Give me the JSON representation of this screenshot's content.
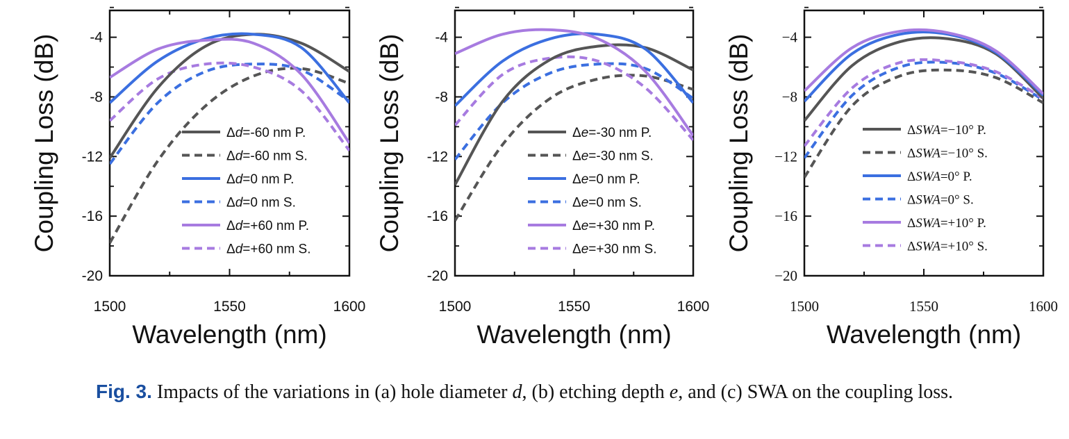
{
  "colors": {
    "grey": "#555555",
    "blue": "#3b6fe0",
    "purple": "#a77be0",
    "axis": "#111111"
  },
  "caption": {
    "label": "Fig. 3.",
    "text_parts": [
      "Impacts of the variations in (a) hole diameter ",
      "d",
      ", (b) etching depth ",
      "e",
      ", and (c) SWA on the coupling loss."
    ]
  },
  "chart_data": [
    {
      "type": "line",
      "xlabel": "Wavelength (nm)",
      "ylabel": "Coupling Loss (dB)",
      "xlim": [
        1500,
        1600
      ],
      "ylim": [
        -20,
        -2.2
      ],
      "xticks": [
        "1500",
        "1550",
        "1600"
      ],
      "yticks": [
        "-4",
        "-8",
        "-12",
        "-16",
        "-20"
      ],
      "x": [
        1500,
        1520,
        1540,
        1560,
        1580,
        1600
      ],
      "series": [
        {
          "name": "Δd=-60 nm P.",
          "sym": "d",
          "pre": "=-60 nm P.",
          "color": "grey",
          "dash": false,
          "values": [
            -12.1,
            -7.4,
            -4.6,
            -3.8,
            -4.4,
            -6.3
          ]
        },
        {
          "name": "Δd=-60 nm S.",
          "sym": "d",
          "pre": "=-60 nm S.",
          "color": "grey",
          "dash": true,
          "values": [
            -17.8,
            -12.3,
            -8.6,
            -6.6,
            -6.1,
            -7.1
          ]
        },
        {
          "name": "Δd=0 nm P.",
          "sym": "d",
          "pre": "=0 nm P.",
          "color": "blue",
          "dash": false,
          "values": [
            -8.4,
            -5.6,
            -4.1,
            -3.8,
            -4.7,
            -8.4
          ]
        },
        {
          "name": "Δd=0 nm S.",
          "sym": "d",
          "pre": "=0 nm S.",
          "color": "blue",
          "dash": true,
          "values": [
            -12.5,
            -8.4,
            -6.3,
            -5.8,
            -6.2,
            -8.3
          ]
        },
        {
          "name": "Δd=+60 nm P.",
          "sym": "d",
          "pre": "=+60 nm P.",
          "color": "purple",
          "dash": false,
          "values": [
            -6.7,
            -4.8,
            -4.2,
            -4.4,
            -6.5,
            -11.1
          ]
        },
        {
          "name": "Δd=+60 nm S.",
          "sym": "d",
          "pre": "=+60 nm S.",
          "color": "purple",
          "dash": true,
          "values": [
            -9.6,
            -6.8,
            -5.8,
            -6.0,
            -7.6,
            -11.6
          ]
        }
      ]
    },
    {
      "type": "line",
      "xlabel": "Wavelength (nm)",
      "ylabel": "Coupling Loss (dB)",
      "xlim": [
        1500,
        1600
      ],
      "ylim": [
        -20,
        -2.2
      ],
      "xticks": [
        "1500",
        "1550",
        "1600"
      ],
      "yticks": [
        "-4",
        "-8",
        "-12",
        "-16",
        "-20"
      ],
      "x": [
        1500,
        1520,
        1540,
        1560,
        1580,
        1600
      ],
      "series": [
        {
          "name": "Δe=-30 nm P.",
          "sym": "e",
          "pre": "=-30 nm P.",
          "color": "grey",
          "dash": false,
          "values": [
            -13.9,
            -8.3,
            -5.5,
            -4.6,
            -4.7,
            -6.2
          ]
        },
        {
          "name": "Δe=-30 nm S.",
          "sym": "e",
          "pre": "=-30 nm S.",
          "color": "grey",
          "dash": true,
          "values": [
            -16.3,
            -11.2,
            -8.1,
            -6.8,
            -6.6,
            -7.5
          ]
        },
        {
          "name": "Δe=0 nm P.",
          "sym": "e",
          "pre": "=0 nm P.",
          "color": "blue",
          "dash": false,
          "values": [
            -8.6,
            -5.6,
            -4.1,
            -3.8,
            -4.8,
            -8.4
          ]
        },
        {
          "name": "Δe=0 nm S.",
          "sym": "e",
          "pre": "=0 nm S.",
          "color": "blue",
          "dash": true,
          "values": [
            -12.2,
            -8.4,
            -6.4,
            -5.8,
            -6.1,
            -8.1
          ]
        },
        {
          "name": "Δe=+30 nm P.",
          "sym": "e",
          "pre": "=+30 nm P.",
          "color": "purple",
          "dash": false,
          "values": [
            -5.1,
            -3.8,
            -3.5,
            -4.1,
            -6.3,
            -10.6
          ]
        },
        {
          "name": "Δe=+30 nm S.",
          "sym": "e",
          "pre": "=+30 nm S.",
          "color": "purple",
          "dash": true,
          "values": [
            -9.9,
            -6.5,
            -5.4,
            -5.6,
            -7.4,
            -10.9
          ]
        }
      ]
    },
    {
      "type": "line",
      "xlabel": "Wavelength (nm)",
      "ylabel": "Coupling Loss (dB)",
      "xlim": [
        1500,
        1600
      ],
      "ylim": [
        -20,
        -2.2
      ],
      "xticks": [
        "1500",
        "1550",
        "1600"
      ],
      "yticks": [
        "−4",
        "−8",
        "−12",
        "−16",
        "−20"
      ],
      "x": [
        1500,
        1520,
        1540,
        1560,
        1580,
        1600
      ],
      "series": [
        {
          "name": "ΔSWA=−10° P.",
          "sym": "SWA",
          "pre": "=−10° P.",
          "color": "grey",
          "dash": false,
          "values": [
            -9.6,
            -5.9,
            -4.3,
            -4.1,
            -5.1,
            -8.1
          ]
        },
        {
          "name": "ΔSWA=−10° S.",
          "sym": "SWA",
          "pre": "=−10° S.",
          "color": "grey",
          "dash": true,
          "values": [
            -13.4,
            -8.6,
            -6.6,
            -6.2,
            -6.7,
            -8.4
          ]
        },
        {
          "name": "ΔSWA=0° P.",
          "sym": "SWA",
          "pre": "=0° P.",
          "color": "blue",
          "dash": false,
          "values": [
            -8.3,
            -5.1,
            -3.8,
            -3.8,
            -5.0,
            -7.9
          ]
        },
        {
          "name": "ΔSWA=0° S.",
          "sym": "SWA",
          "pre": "=0° S.",
          "color": "blue",
          "dash": true,
          "values": [
            -12.1,
            -7.9,
            -6.0,
            -5.7,
            -6.4,
            -8.2
          ]
        },
        {
          "name": "ΔSWA=+10° P.",
          "sym": "SWA",
          "pre": "=+10° P.",
          "color": "purple",
          "dash": false,
          "values": [
            -7.6,
            -4.7,
            -3.6,
            -3.7,
            -4.9,
            -7.8
          ]
        },
        {
          "name": "ΔSWA=+10° S.",
          "sym": "SWA",
          "pre": "=+10° S.",
          "color": "purple",
          "dash": true,
          "values": [
            -11.3,
            -7.4,
            -5.7,
            -5.6,
            -6.3,
            -8.1
          ]
        }
      ]
    }
  ]
}
